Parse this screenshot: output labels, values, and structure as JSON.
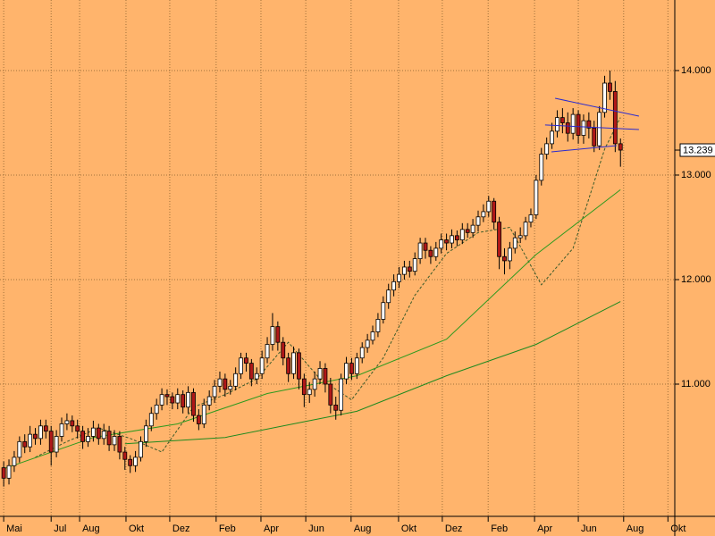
{
  "chart_data": {
    "type": "candlestick",
    "x": [
      0,
      1,
      2,
      3,
      4,
      5,
      6,
      7,
      8,
      9,
      10,
      11,
      12,
      13,
      14,
      15,
      16,
      17,
      18,
      19,
      20,
      21,
      22,
      23,
      24,
      25,
      26,
      27,
      28,
      29,
      30,
      31,
      32,
      33,
      34,
      35,
      36,
      37,
      38,
      39,
      40,
      41,
      42,
      43,
      44,
      45,
      46,
      47,
      48,
      49,
      50,
      51,
      52,
      53,
      54,
      55,
      56,
      57,
      58,
      59,
      60,
      61,
      62,
      63,
      64,
      65,
      66,
      67,
      68,
      69,
      70,
      71,
      72,
      73,
      74,
      75,
      76,
      77,
      78,
      79,
      80,
      81,
      82,
      83,
      84,
      85,
      86,
      87,
      88,
      89,
      90,
      91,
      92,
      93,
      94,
      95,
      96,
      97,
      98,
      99,
      100,
      101,
      102,
      103,
      104,
      105,
      106,
      107,
      108,
      109,
      110,
      111,
      112,
      113,
      114,
      115,
      116,
      117
    ],
    "open": [
      10.2,
      10.1,
      10.22,
      10.3,
      10.45,
      10.4,
      10.52,
      10.48,
      10.6,
      10.55,
      10.35,
      10.5,
      10.62,
      10.65,
      10.6,
      10.55,
      10.45,
      10.5,
      10.58,
      10.48,
      10.55,
      10.42,
      10.5,
      10.35,
      10.28,
      10.22,
      10.3,
      10.45,
      10.6,
      10.72,
      10.8,
      10.9,
      10.88,
      10.82,
      10.9,
      10.78,
      10.92,
      10.7,
      10.62,
      10.8,
      10.88,
      10.98,
      11.05,
      10.95,
      10.98,
      11.1,
      11.25,
      11.2,
      11.05,
      11.1,
      11.25,
      11.38,
      11.55,
      11.4,
      11.25,
      11.1,
      11.3,
      11.05,
      10.9,
      10.95,
      11.05,
      11.15,
      11.0,
      10.8,
      10.75,
      11.05,
      11.2,
      11.1,
      11.25,
      11.35,
      11.42,
      11.5,
      11.62,
      11.78,
      11.9,
      11.98,
      12.05,
      12.12,
      12.08,
      12.2,
      12.35,
      12.28,
      12.22,
      12.3,
      12.38,
      12.35,
      12.42,
      12.38,
      12.48,
      12.45,
      12.52,
      12.6,
      12.65,
      12.75,
      12.55,
      12.22,
      12.18,
      12.3,
      12.4,
      12.42,
      12.55,
      12.62,
      12.95,
      13.2,
      13.3,
      13.42,
      13.55,
      13.5,
      13.4,
      13.58,
      13.38,
      13.52,
      13.45,
      13.28,
      13.6,
      13.88,
      13.8,
      13.3
    ],
    "high": [
      10.26,
      10.28,
      10.36,
      10.5,
      10.52,
      10.6,
      10.58,
      10.66,
      10.66,
      10.6,
      10.56,
      10.68,
      10.72,
      10.7,
      10.66,
      10.6,
      10.58,
      10.65,
      10.62,
      10.62,
      10.6,
      10.56,
      10.55,
      10.4,
      10.32,
      10.36,
      10.5,
      10.66,
      10.78,
      10.86,
      10.96,
      10.95,
      10.92,
      10.96,
      10.94,
      10.98,
      10.96,
      10.76,
      10.86,
      10.94,
      11.04,
      11.12,
      11.1,
      11.04,
      11.16,
      11.3,
      11.3,
      11.24,
      11.16,
      11.32,
      11.45,
      11.68,
      11.6,
      11.45,
      11.3,
      11.36,
      11.34,
      11.1,
      11.02,
      11.12,
      11.22,
      11.2,
      11.06,
      10.88,
      11.1,
      11.26,
      11.25,
      11.3,
      11.4,
      11.48,
      11.56,
      11.68,
      11.84,
      11.96,
      12.05,
      12.12,
      12.18,
      12.18,
      12.26,
      12.4,
      12.4,
      12.32,
      12.36,
      12.44,
      12.44,
      12.48,
      12.47,
      12.54,
      12.54,
      12.58,
      12.66,
      12.72,
      12.8,
      12.78,
      12.6,
      12.3,
      12.36,
      12.46,
      12.5,
      12.6,
      12.68,
      13.0,
      13.26,
      13.36,
      13.5,
      13.62,
      13.64,
      13.6,
      13.64,
      13.62,
      13.58,
      13.6,
      13.52,
      13.66,
      13.95,
      14.0,
      13.9,
      13.35
    ],
    "low": [
      10.02,
      10.04,
      10.16,
      10.25,
      10.34,
      10.35,
      10.42,
      10.42,
      10.48,
      10.22,
      10.3,
      10.45,
      10.56,
      10.54,
      10.48,
      10.38,
      10.4,
      10.45,
      10.42,
      10.42,
      10.36,
      10.36,
      10.28,
      10.18,
      10.15,
      10.16,
      10.26,
      10.4,
      10.55,
      10.66,
      10.75,
      10.8,
      10.76,
      10.76,
      10.72,
      10.72,
      10.64,
      10.56,
      10.58,
      10.75,
      10.82,
      10.92,
      10.88,
      10.9,
      10.94,
      11.05,
      11.12,
      10.98,
      11.0,
      11.05,
      11.2,
      11.32,
      11.32,
      11.18,
      11.02,
      11.05,
      10.95,
      10.78,
      10.82,
      10.88,
      11.0,
      10.92,
      10.72,
      10.66,
      10.7,
      11.0,
      11.04,
      11.05,
      11.2,
      11.3,
      11.38,
      11.45,
      11.58,
      11.72,
      11.84,
      11.92,
      12.0,
      12.02,
      12.04,
      12.15,
      12.2,
      12.15,
      12.18,
      12.25,
      12.28,
      12.3,
      12.32,
      12.34,
      12.4,
      12.4,
      12.46,
      12.55,
      12.6,
      12.48,
      12.1,
      12.05,
      12.1,
      12.25,
      12.35,
      12.38,
      12.5,
      12.58,
      12.9,
      13.15,
      13.25,
      13.36,
      13.4,
      13.32,
      13.34,
      13.3,
      13.3,
      13.35,
      13.22,
      13.24,
      13.55,
      13.72,
      13.22,
      13.08
    ],
    "close": [
      10.1,
      10.22,
      10.3,
      10.45,
      10.4,
      10.52,
      10.48,
      10.6,
      10.55,
      10.35,
      10.5,
      10.62,
      10.65,
      10.6,
      10.55,
      10.45,
      10.5,
      10.58,
      10.48,
      10.55,
      10.42,
      10.5,
      10.35,
      10.28,
      10.22,
      10.3,
      10.45,
      10.6,
      10.72,
      10.8,
      10.9,
      10.88,
      10.82,
      10.9,
      10.78,
      10.92,
      10.7,
      10.62,
      10.8,
      10.88,
      10.98,
      11.05,
      10.95,
      10.98,
      11.1,
      11.25,
      11.2,
      11.05,
      11.1,
      11.25,
      11.38,
      11.55,
      11.4,
      11.25,
      11.1,
      11.3,
      11.05,
      10.9,
      10.95,
      11.05,
      11.15,
      11.0,
      10.8,
      10.75,
      11.05,
      11.2,
      11.1,
      11.25,
      11.35,
      11.42,
      11.5,
      11.62,
      11.78,
      11.9,
      11.98,
      12.05,
      12.12,
      12.08,
      12.2,
      12.35,
      12.28,
      12.22,
      12.3,
      12.38,
      12.35,
      12.42,
      12.38,
      12.48,
      12.45,
      12.52,
      12.6,
      12.65,
      12.75,
      12.55,
      12.22,
      12.18,
      12.3,
      12.4,
      12.42,
      12.55,
      12.62,
      12.95,
      13.2,
      13.3,
      13.42,
      13.55,
      13.5,
      13.4,
      13.58,
      13.38,
      13.52,
      13.45,
      13.28,
      13.6,
      13.88,
      13.8,
      13.3,
      13.239
    ],
    "up_color": "#ffffff",
    "down_color": "#b01818",
    "outline_color": "#000000",
    "lines": [
      {
        "style": "dashed",
        "color": "#3a5a2a",
        "x": [
          6,
          12,
          18,
          24,
          30,
          36,
          42,
          48,
          54,
          60,
          66,
          72,
          78,
          84,
          90,
          96,
          102,
          108,
          114,
          117
        ],
        "values": [
          10.3,
          10.45,
          10.58,
          10.48,
          10.35,
          10.78,
          10.9,
          11.05,
          11.4,
          11.05,
          10.85,
          11.25,
          11.85,
          12.25,
          12.45,
          12.5,
          11.95,
          12.3,
          13.25,
          13.55
        ]
      },
      {
        "style": "solid",
        "color": "#2e9a1e",
        "x": [
          0,
          17,
          33,
          50,
          67,
          84,
          101,
          117
        ],
        "values": [
          10.19,
          10.49,
          10.62,
          10.91,
          11.08,
          11.43,
          12.24,
          12.86
        ]
      },
      {
        "style": "solid",
        "color": "#1e8a1e",
        "x": [
          23,
          42,
          59,
          67,
          84,
          101,
          117
        ],
        "values": [
          10.43,
          10.49,
          10.66,
          10.74,
          11.08,
          11.38,
          11.79
        ]
      }
    ],
    "trendlines": [
      {
        "color": "#2a2ad0",
        "x": [
          104.6,
          120.5
        ],
        "values": [
          13.735,
          13.564
        ]
      },
      {
        "color": "#2a2ad0",
        "x": [
          102.7,
          120.5
        ],
        "values": [
          13.479,
          13.436
        ]
      },
      {
        "color": "#2a2ad0",
        "x": [
          103.9,
          116.3
        ],
        "values": [
          13.222,
          13.282
        ]
      }
    ],
    "xlim": [
      -0.7,
      127.3
    ],
    "ylim": [
      9.735,
      14.675
    ],
    "xticks": [
      {
        "value": 0,
        "label": "Mai"
      },
      {
        "value": 9,
        "label": "Jul"
      },
      {
        "value": 14.4,
        "label": "Aug"
      },
      {
        "value": 23.2,
        "label": "Okt"
      },
      {
        "value": 31.5,
        "label": "Dez"
      },
      {
        "value": 40.3,
        "label": "Feb"
      },
      {
        "value": 48.8,
        "label": "Apr"
      },
      {
        "value": 57.3,
        "label": "Jun"
      },
      {
        "value": 65.9,
        "label": "Aug"
      },
      {
        "value": 74.9,
        "label": "Okt"
      },
      {
        "value": 83.2,
        "label": "Dez"
      },
      {
        "value": 91.9,
        "label": "Feb"
      },
      {
        "value": 100.7,
        "label": "Apr"
      },
      {
        "value": 109,
        "label": "Jun"
      },
      {
        "value": 117.6,
        "label": "Aug"
      },
      {
        "value": 126,
        "label": "Okt"
      }
    ],
    "yticks": [
      {
        "value": 11,
        "label": "11.000"
      },
      {
        "value": 12,
        "label": "12.000"
      },
      {
        "value": 13,
        "label": "13.000"
      },
      {
        "value": 14,
        "label": "14.000"
      }
    ],
    "grid": true,
    "background": "#ffb46c",
    "grid_color": "#a0703a"
  }
}
